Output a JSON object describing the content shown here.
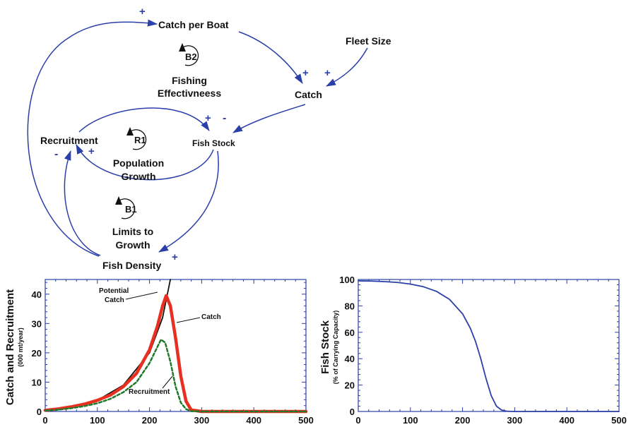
{
  "diagram": {
    "nodes": {
      "catch_per_boat": "Catch per Boat",
      "fleet_size": "Fleet Size",
      "catch": "Catch",
      "fish_stock": "Fish Stock",
      "recruitment": "Recruitment",
      "fish_density": "Fish Density"
    },
    "loops": {
      "b2": {
        "id": "B2",
        "name_line1": "Fishing",
        "name_line2": "Effectivneess"
      },
      "r1": {
        "id": "R1",
        "name_line1": "Population",
        "name_line2": "Growth"
      },
      "b1": {
        "id": "B1",
        "name_line1": "Limits to",
        "name_line2": "Growth"
      }
    },
    "signs": {
      "density_to_cpb": "+",
      "cpb_to_catch": "+",
      "fleet_to_catch": "+",
      "recruit_to_stock": "+",
      "catch_to_stock": "-",
      "stock_to_recruit": "+",
      "density_to_recruit": "-",
      "stock_to_density": "+"
    },
    "colors": {
      "link": "#2b3fa8",
      "text": "#111111"
    }
  },
  "chart_data": [
    {
      "type": "line",
      "title": "",
      "ylabel": "Catch and Recruitment",
      "ylabel_units": "(000 mt/year)",
      "xlim": [
        0,
        500
      ],
      "ylim": [
        0,
        45
      ],
      "xticks": [
        "0",
        "100",
        "200",
        "300",
        "400",
        "500"
      ],
      "yticks": [
        "0",
        "10",
        "20",
        "30",
        "40"
      ],
      "annotations": {
        "potential_catch_1": "Potential",
        "potential_catch_2": "Catch",
        "catch": "Catch",
        "recruitment": "Recruitment"
      },
      "series": [
        {
          "name": "Potential Catch",
          "color": "#111111",
          "style": "solid",
          "x": [
            0,
            50,
            100,
            150,
            200,
            225,
            240
          ],
          "y": [
            0.3,
            1.3,
            3.8,
            9.0,
            20.0,
            32.0,
            45.0
          ]
        },
        {
          "name": "Catch",
          "color": "#e53022",
          "style": "solid",
          "x": [
            0,
            25,
            50,
            75,
            100,
            125,
            150,
            175,
            200,
            215,
            225,
            232,
            240,
            250,
            260,
            270,
            280,
            300,
            400,
            500
          ],
          "y": [
            0.4,
            0.9,
            1.6,
            2.5,
            3.8,
            5.6,
            8.5,
            13.0,
            21.0,
            29.0,
            36.0,
            39.5,
            36.0,
            25.0,
            12.0,
            3.5,
            0.5,
            0,
            0,
            0
          ]
        },
        {
          "name": "Recruitment",
          "color": "#1e7a2a",
          "style": "dashed",
          "x": [
            0,
            25,
            50,
            75,
            100,
            125,
            150,
            175,
            200,
            215,
            222,
            230,
            240,
            250,
            260,
            270,
            280,
            300,
            400,
            500
          ],
          "y": [
            0.3,
            0.6,
            1.1,
            1.8,
            2.8,
            4.3,
            6.6,
            10.0,
            16.5,
            22.0,
            24.5,
            23.5,
            17.0,
            8.5,
            3.0,
            0.8,
            0.1,
            0,
            0,
            0
          ]
        }
      ]
    },
    {
      "type": "line",
      "title": "",
      "ylabel": "Fish Stock",
      "ylabel_units": "(% of Carrying Capacity)",
      "xlim": [
        0,
        500
      ],
      "ylim": [
        0,
        100
      ],
      "xticks": [
        "0",
        "100",
        "200",
        "300",
        "400",
        "500"
      ],
      "yticks": [
        "0",
        "20",
        "40",
        "60",
        "80",
        "100"
      ],
      "series": [
        {
          "name": "Fish Stock",
          "color": "#2b3fa8",
          "style": "solid",
          "x": [
            0,
            25,
            50,
            75,
            100,
            125,
            150,
            175,
            200,
            215,
            225,
            235,
            245,
            255,
            265,
            275,
            285,
            300,
            400,
            500
          ],
          "y": [
            99,
            98.8,
            98.4,
            97.8,
            96.5,
            94.5,
            91,
            85,
            74,
            63,
            53,
            40,
            25,
            12,
            4,
            1,
            0.2,
            0,
            0,
            0
          ]
        }
      ]
    }
  ]
}
